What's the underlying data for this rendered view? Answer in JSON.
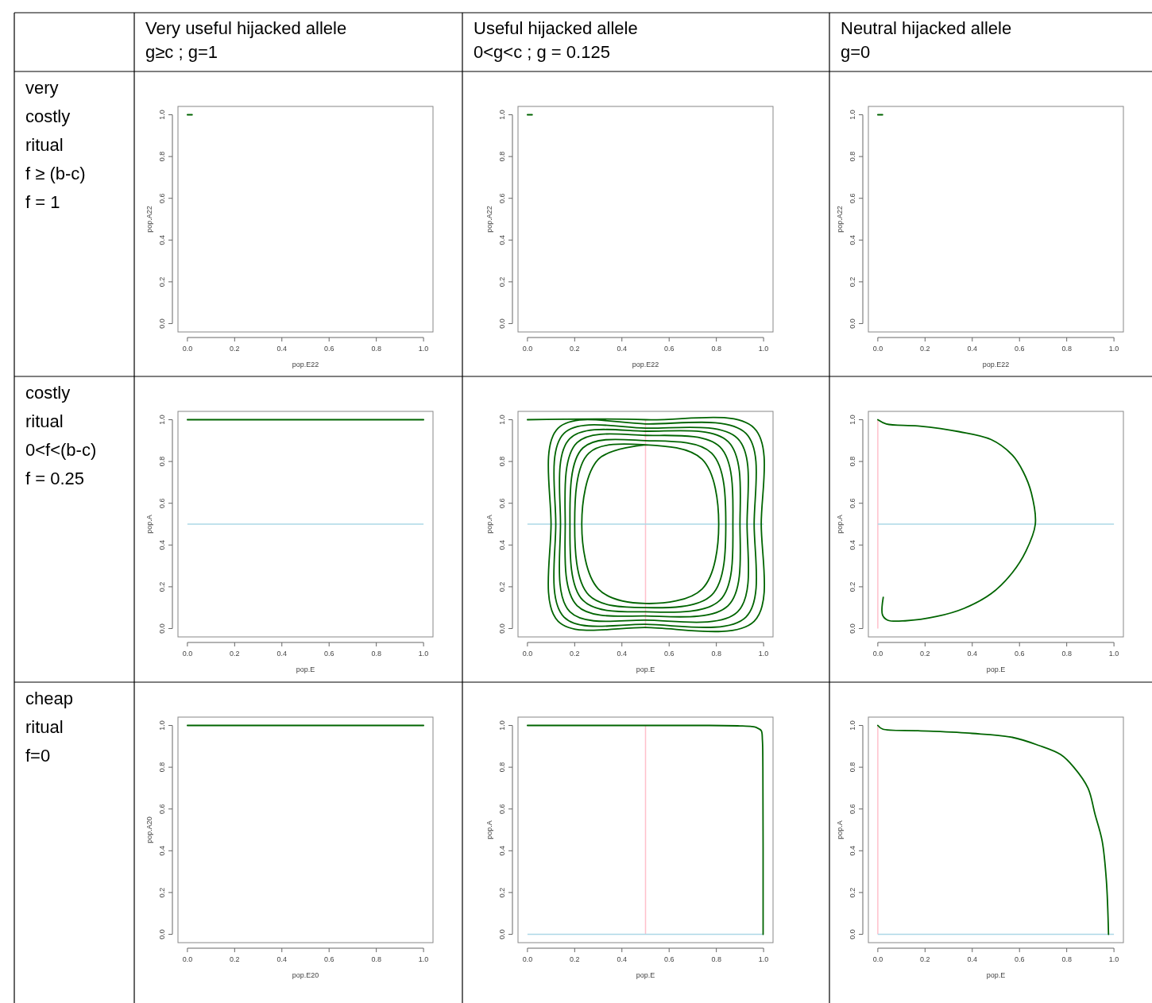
{
  "chart_data": [
    {
      "type": "other",
      "annotations": [
        "Very useful hijacked allele\ng≥c ; g=1",
        "Useful hijacked allele\n0<g<c ; g = 0.125",
        "Neutral hijacked allele\ng=0",
        "very\ncostly\nritual\nf ≥ (b-c)\nf = 1",
        "costly\nritual\n0<f<(b-c)\nf = 0.25",
        "cheap\nritual\nf=0"
      ]
    },
    {
      "type": "line",
      "xlabel": "pop.E22",
      "ylabel": "pop.A22",
      "xlim": [
        -0.04,
        1.04
      ],
      "ylim": [
        -0.04,
        1.04
      ],
      "xticks": [
        {
          "value": 0,
          "label": "0.0"
        },
        {
          "value": 0.2,
          "label": "0.2"
        },
        {
          "value": 0.4,
          "label": "0.4"
        },
        {
          "value": 0.6,
          "label": "0.6"
        },
        {
          "value": 0.8,
          "label": "0.8"
        },
        {
          "value": 1,
          "label": "1.0"
        }
      ],
      "yticks": [
        {
          "value": 0,
          "label": "0.0"
        },
        {
          "value": 0.2,
          "label": "0.2"
        },
        {
          "value": 0.4,
          "label": "0.4"
        },
        {
          "value": 0.6,
          "label": "0.6"
        },
        {
          "value": 0.8,
          "label": "0.8"
        },
        {
          "value": 1,
          "label": "1.0"
        }
      ],
      "series": [
        {
          "color": "#006400",
          "x": [
            0,
            0.02
          ],
          "values": [
            1,
            1
          ]
        }
      ]
    },
    {
      "type": "line",
      "xlabel": "pop.E22",
      "ylabel": "pop.A22",
      "xlim": [
        -0.04,
        1.04
      ],
      "ylim": [
        -0.04,
        1.04
      ],
      "xticks": [
        {
          "value": 0,
          "label": "0.0"
        },
        {
          "value": 0.2,
          "label": "0.2"
        },
        {
          "value": 0.4,
          "label": "0.4"
        },
        {
          "value": 0.6,
          "label": "0.6"
        },
        {
          "value": 0.8,
          "label": "0.8"
        },
        {
          "value": 1,
          "label": "1.0"
        }
      ],
      "yticks": [
        {
          "value": 0,
          "label": "0.0"
        },
        {
          "value": 0.2,
          "label": "0.2"
        },
        {
          "value": 0.4,
          "label": "0.4"
        },
        {
          "value": 0.6,
          "label": "0.6"
        },
        {
          "value": 0.8,
          "label": "0.8"
        },
        {
          "value": 1,
          "label": "1.0"
        }
      ],
      "series": [
        {
          "color": "#006400",
          "x": [
            0,
            0.02
          ],
          "values": [
            1,
            1
          ]
        }
      ]
    },
    {
      "type": "line",
      "xlabel": "pop.E22",
      "ylabel": "pop.A22",
      "xlim": [
        -0.04,
        1.04
      ],
      "ylim": [
        -0.04,
        1.04
      ],
      "xticks": [
        {
          "value": 0,
          "label": "0.0"
        },
        {
          "value": 0.2,
          "label": "0.2"
        },
        {
          "value": 0.4,
          "label": "0.4"
        },
        {
          "value": 0.6,
          "label": "0.6"
        },
        {
          "value": 0.8,
          "label": "0.8"
        },
        {
          "value": 1,
          "label": "1.0"
        }
      ],
      "yticks": [
        {
          "value": 0,
          "label": "0.0"
        },
        {
          "value": 0.2,
          "label": "0.2"
        },
        {
          "value": 0.4,
          "label": "0.4"
        },
        {
          "value": 0.6,
          "label": "0.6"
        },
        {
          "value": 0.8,
          "label": "0.8"
        },
        {
          "value": 1,
          "label": "1.0"
        }
      ],
      "series": [
        {
          "color": "#006400",
          "x": [
            0,
            0.02
          ],
          "values": [
            1,
            1
          ]
        }
      ]
    },
    {
      "type": "line",
      "xlabel": "pop.E",
      "ylabel": "pop.A",
      "xlim": [
        -0.04,
        1.04
      ],
      "ylim": [
        -0.04,
        1.04
      ],
      "xticks": [
        {
          "value": 0,
          "label": "0.0"
        },
        {
          "value": 0.2,
          "label": "0.2"
        },
        {
          "value": 0.4,
          "label": "0.4"
        },
        {
          "value": 0.6,
          "label": "0.6"
        },
        {
          "value": 0.8,
          "label": "0.8"
        },
        {
          "value": 1,
          "label": "1.0"
        }
      ],
      "yticks": [
        {
          "value": 0,
          "label": "0.0"
        },
        {
          "value": 0.2,
          "label": "0.2"
        },
        {
          "value": 0.4,
          "label": "0.4"
        },
        {
          "value": 0.6,
          "label": "0.6"
        },
        {
          "value": 0.8,
          "label": "0.8"
        },
        {
          "value": 1,
          "label": "1.0"
        }
      ],
      "ref_lines": [
        {
          "axis": "y",
          "value": 0.5,
          "color": "#add8e6"
        }
      ],
      "series": [
        {
          "color": "#006400",
          "x": [
            0,
            1
          ],
          "values": [
            1,
            1
          ]
        }
      ]
    },
    {
      "type": "line",
      "xlabel": "pop.E",
      "ylabel": "pop.A",
      "xlim": [
        -0.04,
        1.04
      ],
      "ylim": [
        -0.04,
        1.04
      ],
      "xticks": [
        {
          "value": 0,
          "label": "0.0"
        },
        {
          "value": 0.2,
          "label": "0.2"
        },
        {
          "value": 0.4,
          "label": "0.4"
        },
        {
          "value": 0.6,
          "label": "0.6"
        },
        {
          "value": 0.8,
          "label": "0.8"
        },
        {
          "value": 1,
          "label": "1.0"
        }
      ],
      "yticks": [
        {
          "value": 0,
          "label": "0.0"
        },
        {
          "value": 0.2,
          "label": "0.2"
        },
        {
          "value": 0.4,
          "label": "0.4"
        },
        {
          "value": 0.6,
          "label": "0.6"
        },
        {
          "value": 0.8,
          "label": "0.8"
        },
        {
          "value": 1,
          "label": "1.0"
        }
      ],
      "ref_lines": [
        {
          "axis": "x",
          "value": 0.5,
          "color": "#ffc0cb"
        },
        {
          "axis": "y",
          "value": 0.5,
          "color": "#add8e6"
        }
      ],
      "series": [
        {
          "color": "#006400",
          "x": [
            0,
            0.5,
            0.96,
            0.99,
            0.96,
            0.5,
            0.13,
            0.1,
            0.13,
            0.5,
            0.925,
            0.96,
            0.925,
            0.5,
            0.155,
            0.12,
            0.155,
            0.5,
            0.89,
            0.93,
            0.89,
            0.5,
            0.18,
            0.14,
            0.18,
            0.5,
            0.85,
            0.9,
            0.85,
            0.5,
            0.21,
            0.16,
            0.21,
            0.5,
            0.815,
            0.87,
            0.815,
            0.5,
            0.235,
            0.18,
            0.235,
            0.5,
            0.78,
            0.84,
            0.78,
            0.5,
            0.26,
            0.2,
            0.26,
            0.5,
            0.74,
            0.81,
            0.74,
            0.5,
            0.3,
            0.23,
            0.3,
            0.5
          ],
          "values": [
            1,
            1,
            0.96,
            0.5,
            0.035,
            0.005,
            0.035,
            0.5,
            0.96,
            0.98,
            0.935,
            0.5,
            0.055,
            0.02,
            0.055,
            0.5,
            0.935,
            0.96,
            0.91,
            0.5,
            0.08,
            0.04,
            0.08,
            0.5,
            0.91,
            0.945,
            0.895,
            0.5,
            0.11,
            0.06,
            0.11,
            0.5,
            0.89,
            0.925,
            0.87,
            0.5,
            0.135,
            0.08,
            0.135,
            0.5,
            0.865,
            0.9,
            0.84,
            0.5,
            0.16,
            0.1,
            0.16,
            0.5,
            0.84,
            0.88,
            0.81,
            0.5,
            0.19,
            0.12,
            0.19,
            0.5,
            0.81,
            0.88
          ]
        }
      ]
    },
    {
      "type": "line",
      "xlabel": "pop.E",
      "ylabel": "pop.A",
      "xlim": [
        -0.04,
        1.04
      ],
      "ylim": [
        -0.04,
        1.04
      ],
      "xticks": [
        {
          "value": 0,
          "label": "0.0"
        },
        {
          "value": 0.2,
          "label": "0.2"
        },
        {
          "value": 0.4,
          "label": "0.4"
        },
        {
          "value": 0.6,
          "label": "0.6"
        },
        {
          "value": 0.8,
          "label": "0.8"
        },
        {
          "value": 1,
          "label": "1.0"
        }
      ],
      "yticks": [
        {
          "value": 0,
          "label": "0.0"
        },
        {
          "value": 0.2,
          "label": "0.2"
        },
        {
          "value": 0.4,
          "label": "0.4"
        },
        {
          "value": 0.6,
          "label": "0.6"
        },
        {
          "value": 0.8,
          "label": "0.8"
        },
        {
          "value": 1,
          "label": "1.0"
        }
      ],
      "ref_lines": [
        {
          "axis": "x",
          "value": 0,
          "color": "#ffc0cb"
        },
        {
          "axis": "y",
          "value": 0.5,
          "color": "#add8e6"
        }
      ],
      "series": [
        {
          "color": "#006400",
          "x": [
            0.023,
            0.02,
            0.042,
            0.116,
            0.25,
            0.366,
            0.48,
            0.57,
            0.627,
            0.667,
            0.65,
            0.616,
            0.57,
            0.48,
            0.343,
            0.17,
            0.036,
            0
          ],
          "values": [
            0.15,
            0.065,
            0.04,
            0.037,
            0.058,
            0.097,
            0.167,
            0.268,
            0.37,
            0.5,
            0.65,
            0.75,
            0.83,
            0.905,
            0.943,
            0.97,
            0.98,
            1
          ]
        }
      ]
    },
    {
      "type": "line",
      "xlabel": "pop.E20",
      "ylabel": "pop.A20",
      "xlim": [
        -0.04,
        1.04
      ],
      "ylim": [
        -0.04,
        1.04
      ],
      "xticks": [
        {
          "value": 0,
          "label": "0.0"
        },
        {
          "value": 0.2,
          "label": "0.2"
        },
        {
          "value": 0.4,
          "label": "0.4"
        },
        {
          "value": 0.6,
          "label": "0.6"
        },
        {
          "value": 0.8,
          "label": "0.8"
        },
        {
          "value": 1,
          "label": "1.0"
        }
      ],
      "yticks": [
        {
          "value": 0,
          "label": "0.0"
        },
        {
          "value": 0.2,
          "label": "0.2"
        },
        {
          "value": 0.4,
          "label": "0.4"
        },
        {
          "value": 0.6,
          "label": "0.6"
        },
        {
          "value": 0.8,
          "label": "0.8"
        },
        {
          "value": 1,
          "label": "1.0"
        }
      ],
      "series": [
        {
          "color": "#006400",
          "x": [
            0,
            1
          ],
          "values": [
            1,
            1
          ]
        }
      ]
    },
    {
      "type": "line",
      "xlabel": "pop.E",
      "ylabel": "pop.A",
      "xlim": [
        -0.04,
        1.04
      ],
      "ylim": [
        -0.04,
        1.04
      ],
      "xticks": [
        {
          "value": 0,
          "label": "0.0"
        },
        {
          "value": 0.2,
          "label": "0.2"
        },
        {
          "value": 0.4,
          "label": "0.4"
        },
        {
          "value": 0.6,
          "label": "0.6"
        },
        {
          "value": 0.8,
          "label": "0.8"
        },
        {
          "value": 1,
          "label": "1.0"
        }
      ],
      "yticks": [
        {
          "value": 0,
          "label": "0.0"
        },
        {
          "value": 0.2,
          "label": "0.2"
        },
        {
          "value": 0.4,
          "label": "0.4"
        },
        {
          "value": 0.6,
          "label": "0.6"
        },
        {
          "value": 0.8,
          "label": "0.8"
        },
        {
          "value": 1,
          "label": "1.0"
        }
      ],
      "ref_lines": [
        {
          "axis": "x",
          "value": 0.5,
          "color": "#ffc0cb"
        },
        {
          "axis": "y",
          "value": 0,
          "color": "#add8e6"
        }
      ],
      "series": [
        {
          "color": "#006400",
          "x": [
            0,
            0.5,
            0.77,
            0.9,
            0.95,
            0.97,
            0.99,
            0.995,
            0.997,
            0.998
          ],
          "values": [
            1,
            1,
            1,
            0.998,
            0.995,
            0.99,
            0.975,
            0.93,
            0.8,
            0
          ]
        }
      ]
    },
    {
      "type": "line",
      "xlabel": "pop.E",
      "ylabel": "pop.A",
      "xlim": [
        -0.04,
        1.04
      ],
      "ylim": [
        -0.04,
        1.04
      ],
      "xticks": [
        {
          "value": 0,
          "label": "0.0"
        },
        {
          "value": 0.2,
          "label": "0.2"
        },
        {
          "value": 0.4,
          "label": "0.4"
        },
        {
          "value": 0.6,
          "label": "0.6"
        },
        {
          "value": 0.8,
          "label": "0.8"
        },
        {
          "value": 1,
          "label": "1.0"
        }
      ],
      "yticks": [
        {
          "value": 0,
          "label": "0.0"
        },
        {
          "value": 0.2,
          "label": "0.2"
        },
        {
          "value": 0.4,
          "label": "0.4"
        },
        {
          "value": 0.6,
          "label": "0.6"
        },
        {
          "value": 0.8,
          "label": "0.8"
        },
        {
          "value": 1,
          "label": "1.0"
        }
      ],
      "ref_lines": [
        {
          "axis": "x",
          "value": 0,
          "color": "#ffc0cb"
        },
        {
          "axis": "y",
          "value": 0,
          "color": "#add8e6"
        }
      ],
      "series": [
        {
          "color": "#006400",
          "x": [
            0,
            0.02,
            0.17,
            0.4,
            0.57,
            0.68,
            0.775,
            0.83,
            0.89,
            0.92,
            0.95,
            0.968,
            0.977
          ],
          "values": [
            1,
            0.983,
            0.975,
            0.962,
            0.943,
            0.905,
            0.86,
            0.8,
            0.7,
            0.574,
            0.447,
            0.256,
            0
          ]
        }
      ]
    }
  ]
}
